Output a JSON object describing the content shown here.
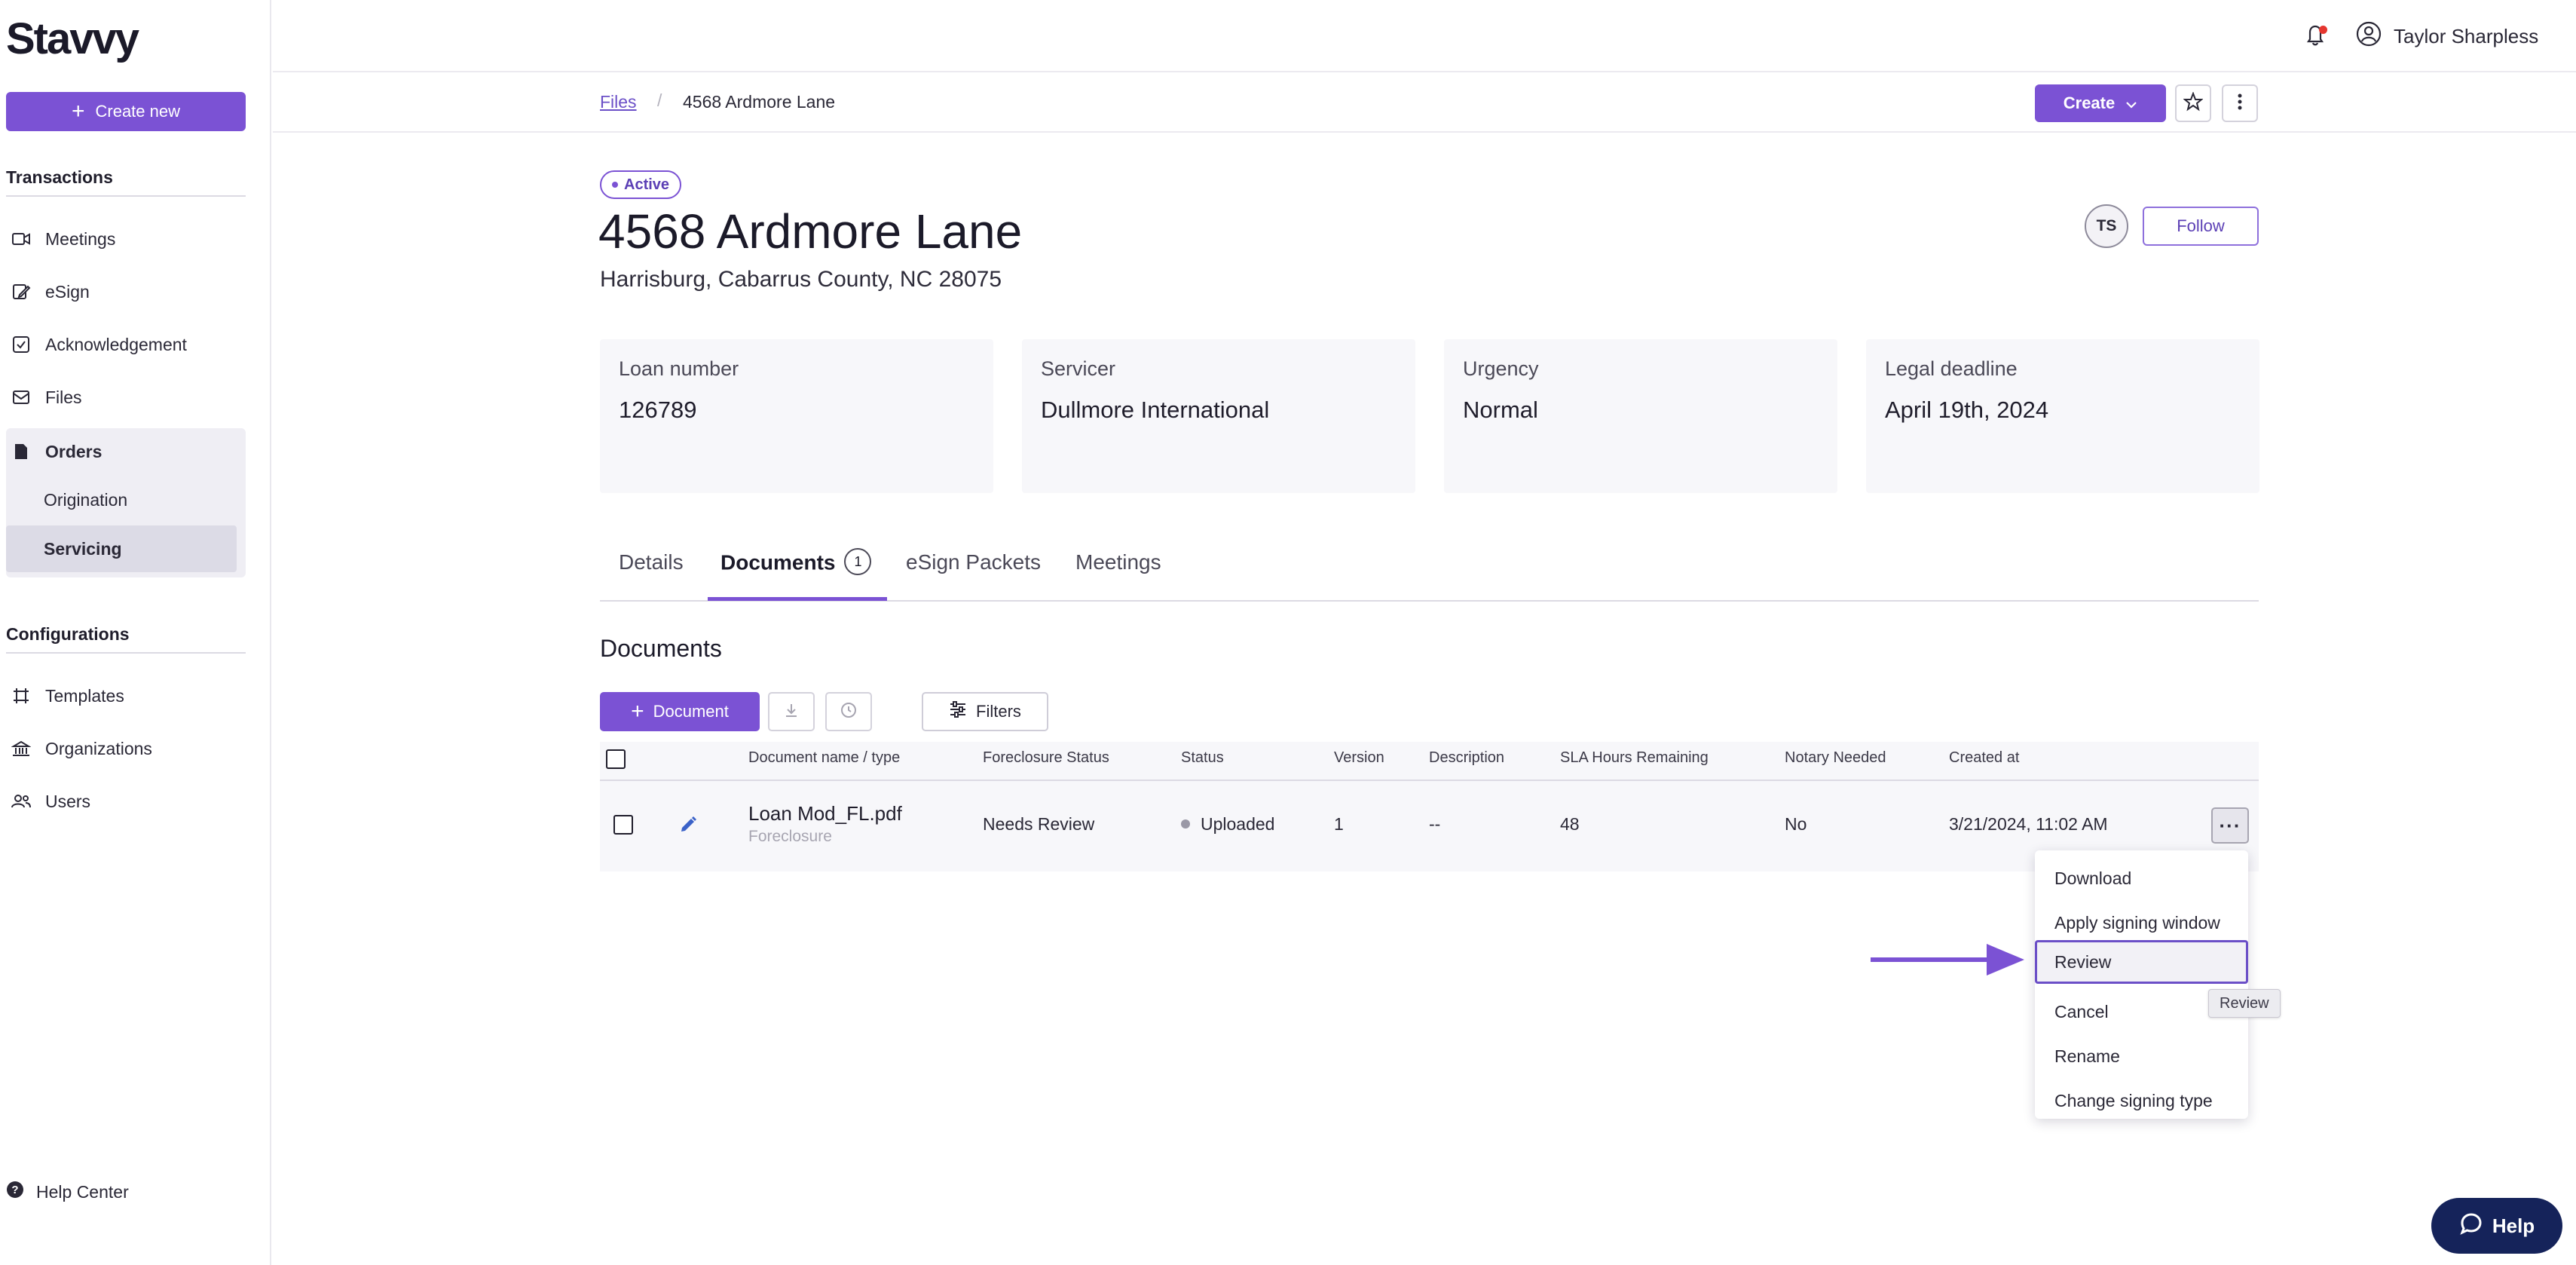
{
  "app": {
    "logo": "Stavvy",
    "create_new_label": "Create new"
  },
  "sidebar": {
    "transactions_title": "Transactions",
    "transactions": [
      {
        "label": "Meetings",
        "icon": "video-icon"
      },
      {
        "label": "eSign",
        "icon": "signature-icon"
      },
      {
        "label": "Acknowledgement",
        "icon": "checkbox-icon"
      },
      {
        "label": "Files",
        "icon": "mail-icon"
      }
    ],
    "orders_label": "Orders",
    "orders_sub": [
      "Origination",
      "Servicing"
    ],
    "orders_active": "Servicing",
    "configurations_title": "Configurations",
    "configurations": [
      {
        "label": "Templates",
        "icon": "frame-icon"
      },
      {
        "label": "Organizations",
        "icon": "bank-icon"
      },
      {
        "label": "Users",
        "icon": "users-icon"
      }
    ],
    "help_center_label": "Help Center"
  },
  "topbar": {
    "user_name": "Taylor Sharpless"
  },
  "breadcrumb": {
    "root": "Files",
    "separator": "/",
    "current": "4568 Ardmore Lane"
  },
  "actions": {
    "create_label": "Create"
  },
  "header": {
    "status": "Active",
    "title": "4568 Ardmore Lane",
    "address": "Harrisburg, Cabarrus County, NC 28075",
    "avatar_initials": "TS",
    "follow_label": "Follow"
  },
  "cards": [
    {
      "label": "Loan number",
      "value": "126789"
    },
    {
      "label": "Servicer",
      "value": "Dullmore International"
    },
    {
      "label": "Urgency",
      "value": "Normal"
    },
    {
      "label": "Legal deadline",
      "value": "April 19th, 2024"
    }
  ],
  "tabs": {
    "details": "Details",
    "documents": "Documents",
    "documents_count": "1",
    "esign_packets": "eSign Packets",
    "meetings": "Meetings"
  },
  "documents": {
    "title": "Documents",
    "add_label": "Document",
    "filters_label": "Filters",
    "columns": {
      "name": "Document name / type",
      "foreclosure_status": "Foreclosure Status",
      "status": "Status",
      "version": "Version",
      "description": "Description",
      "sla": "SLA Hours Remaining",
      "notary": "Notary Needed",
      "created": "Created at"
    },
    "rows": [
      {
        "name": "Loan Mod_FL.pdf",
        "type": "Foreclosure",
        "foreclosure_status": "Needs Review",
        "status": "Uploaded",
        "version": "1",
        "description": "--",
        "sla": "48",
        "notary": "No",
        "created": "3/21/2024, 11:02 AM"
      }
    ]
  },
  "row_menu": {
    "more_label": "···",
    "items": [
      "Download",
      "Apply signing window",
      "Review",
      "Cancel",
      "Rename",
      "Change signing type"
    ],
    "focused": "Review",
    "tooltip": "Review"
  },
  "help_widget": {
    "label": "Help"
  },
  "colors": {
    "accent": "#7b52d4",
    "help_pill": "#15235a",
    "notification_dot": "#e5362f"
  }
}
